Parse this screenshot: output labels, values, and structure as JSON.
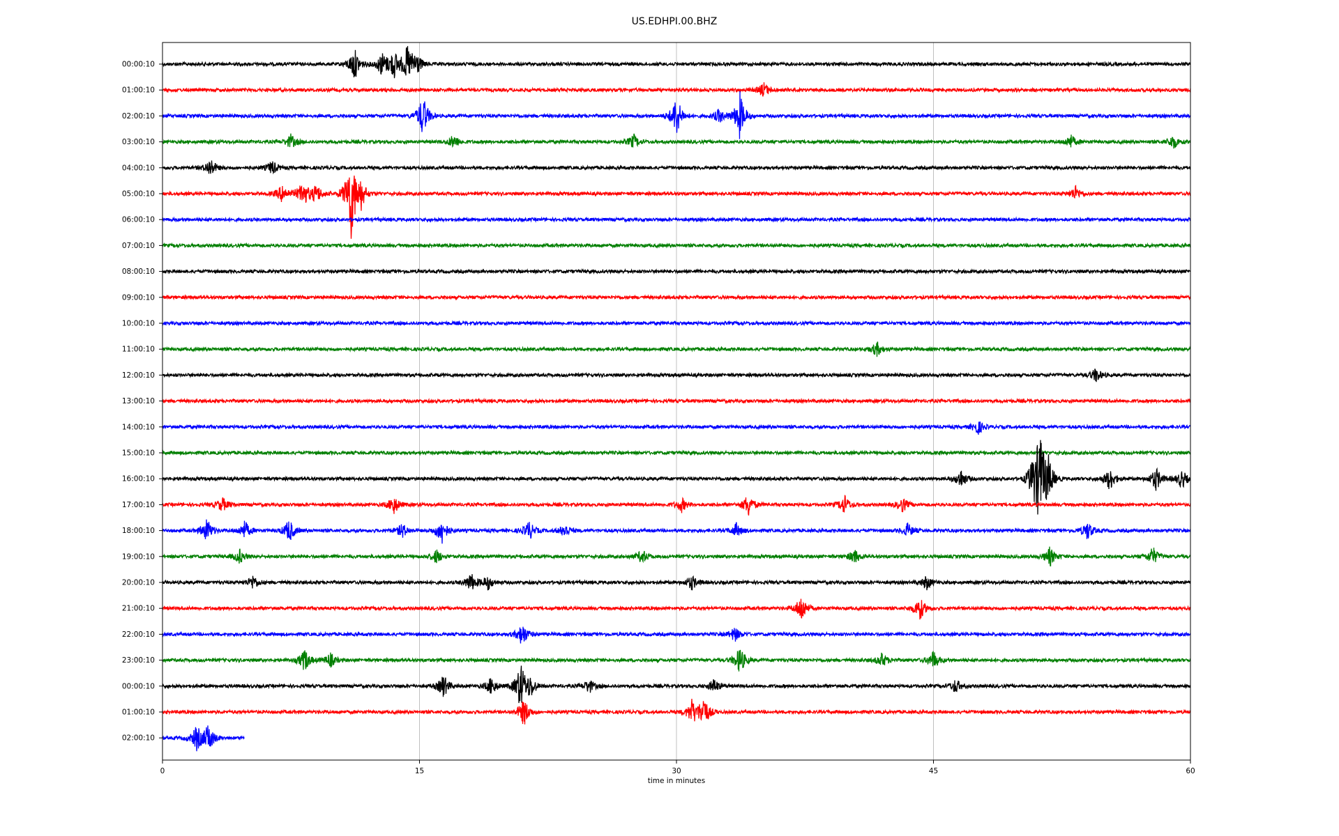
{
  "chart_data": {
    "type": "line",
    "title": "US.EDHPI.00.BHZ",
    "xlabel": "time in minutes",
    "ylabel": "",
    "xlim": [
      0,
      60
    ],
    "xticks": [
      0,
      15,
      30,
      45,
      60
    ],
    "grid": "vertical",
    "colors": [
      "#000000",
      "#ff0000",
      "#0000ff",
      "#007f00"
    ],
    "rows": [
      {
        "label": "00:00:10",
        "events": [
          [
            11.2,
            0.7
          ],
          [
            12.8,
            0.5
          ],
          [
            13.5,
            0.6
          ],
          [
            14.3,
            0.7
          ],
          [
            14.8,
            0.5
          ]
        ]
      },
      {
        "label": "01:00:10",
        "events": [
          [
            35.1,
            0.3
          ]
        ]
      },
      {
        "label": "02:00:10",
        "events": [
          [
            15.2,
            0.9
          ],
          [
            30.0,
            0.9
          ],
          [
            32.5,
            0.3
          ],
          [
            33.7,
            1.0
          ]
        ]
      },
      {
        "label": "03:00:10",
        "events": [
          [
            7.5,
            0.3
          ],
          [
            17.0,
            0.3
          ],
          [
            27.5,
            0.3
          ],
          [
            53.0,
            0.3
          ],
          [
            59.0,
            0.3
          ]
        ]
      },
      {
        "label": "04:00:10",
        "events": [
          [
            2.8,
            0.4
          ],
          [
            6.4,
            0.3
          ]
        ]
      },
      {
        "label": "05:00:10",
        "events": [
          [
            7.0,
            0.4
          ],
          [
            8.2,
            0.6
          ],
          [
            9.0,
            0.4
          ],
          [
            11.0,
            2.0
          ],
          [
            11.6,
            0.5
          ],
          [
            53.3,
            0.3
          ]
        ]
      },
      {
        "label": "06:00:10",
        "events": []
      },
      {
        "label": "07:00:10",
        "events": []
      },
      {
        "label": "08:00:10",
        "events": []
      },
      {
        "label": "09:00:10",
        "events": []
      },
      {
        "label": "10:00:10",
        "events": []
      },
      {
        "label": "11:00:10",
        "events": [
          [
            41.7,
            0.3
          ]
        ]
      },
      {
        "label": "12:00:10",
        "events": [
          [
            54.5,
            0.3
          ]
        ]
      },
      {
        "label": "13:00:10",
        "events": []
      },
      {
        "label": "14:00:10",
        "events": [
          [
            47.6,
            0.3
          ]
        ]
      },
      {
        "label": "15:00:10",
        "events": []
      },
      {
        "label": "16:00:10",
        "events": [
          [
            46.6,
            0.4
          ],
          [
            50.8,
            0.6
          ],
          [
            51.2,
            2.0
          ],
          [
            51.7,
            0.8
          ],
          [
            55.3,
            0.5
          ],
          [
            58.0,
            0.5
          ],
          [
            59.5,
            0.4
          ]
        ]
      },
      {
        "label": "17:00:10",
        "events": [
          [
            3.5,
            0.3
          ],
          [
            13.5,
            0.4
          ],
          [
            30.3,
            0.3
          ],
          [
            34.2,
            0.5
          ],
          [
            39.8,
            0.4
          ],
          [
            43.2,
            0.3
          ]
        ]
      },
      {
        "label": "18:00:10",
        "events": [
          [
            2.6,
            0.5
          ],
          [
            4.8,
            0.4
          ],
          [
            7.4,
            0.5
          ],
          [
            14.0,
            0.3
          ],
          [
            16.3,
            0.6
          ],
          [
            21.4,
            0.4
          ],
          [
            23.5,
            0.3
          ],
          [
            33.5,
            0.3
          ],
          [
            43.5,
            0.3
          ],
          [
            54.0,
            0.4
          ]
        ]
      },
      {
        "label": "19:00:10",
        "events": [
          [
            4.5,
            0.3
          ],
          [
            16.0,
            0.3
          ],
          [
            28.0,
            0.3
          ],
          [
            40.4,
            0.3
          ],
          [
            51.8,
            0.4
          ],
          [
            57.8,
            0.4
          ]
        ]
      },
      {
        "label": "20:00:10",
        "events": [
          [
            5.3,
            0.3
          ],
          [
            18.0,
            0.4
          ],
          [
            19.0,
            0.3
          ],
          [
            30.9,
            0.3
          ],
          [
            44.6,
            0.3
          ]
        ]
      },
      {
        "label": "21:00:10",
        "events": [
          [
            37.3,
            0.6
          ],
          [
            44.2,
            0.5
          ]
        ]
      },
      {
        "label": "22:00:10",
        "events": [
          [
            21.0,
            0.5
          ],
          [
            33.4,
            0.3
          ]
        ]
      },
      {
        "label": "23:00:10",
        "events": [
          [
            8.3,
            0.5
          ],
          [
            9.8,
            0.3
          ],
          [
            33.7,
            0.6
          ],
          [
            42.0,
            0.3
          ],
          [
            45.0,
            0.4
          ]
        ]
      },
      {
        "label": "00:00:10",
        "events": [
          [
            16.4,
            0.5
          ],
          [
            19.2,
            0.4
          ],
          [
            20.9,
            1.0
          ],
          [
            21.5,
            0.4
          ],
          [
            24.9,
            0.3
          ],
          [
            32.2,
            0.3
          ],
          [
            46.3,
            0.3
          ]
        ]
      },
      {
        "label": "01:00:10",
        "events": [
          [
            21.1,
            0.6
          ],
          [
            30.9,
            0.5
          ],
          [
            31.6,
            0.7
          ]
        ]
      },
      {
        "label": "02:00:10",
        "end": 4.8,
        "events": [
          [
            2.0,
            0.5
          ],
          [
            2.7,
            0.6
          ]
        ]
      }
    ]
  }
}
